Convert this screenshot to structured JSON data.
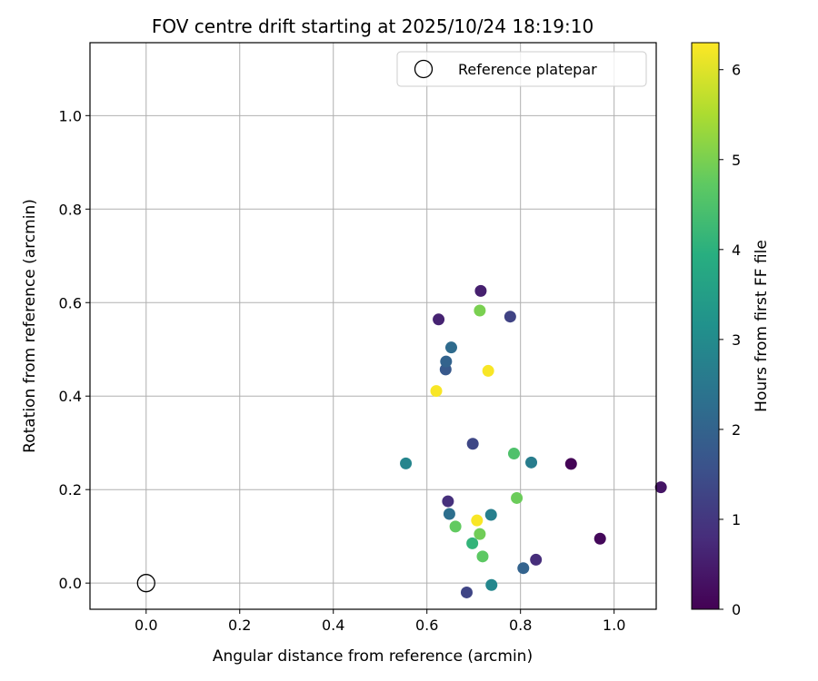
{
  "chart_data": {
    "type": "scatter",
    "title": "FOV centre drift starting at 2025/10/24 18:19:10",
    "xlabel": "Angular distance from reference (arcmin)",
    "ylabel": "Rotation from reference (arcmin)",
    "xlim": [
      -0.12,
      1.09
    ],
    "ylim": [
      -0.056,
      1.156
    ],
    "xticks": [
      0.0,
      0.2,
      0.4,
      0.6,
      0.8,
      1.0
    ],
    "xtick_labels": [
      "0.0",
      "0.2",
      "0.4",
      "0.6",
      "0.8",
      "1.0"
    ],
    "yticks": [
      0.0,
      0.2,
      0.4,
      0.6,
      0.8,
      1.0
    ],
    "ytick_labels": [
      "0.0",
      "0.2",
      "0.4",
      "0.6",
      "0.8",
      "1.0"
    ],
    "grid": true,
    "legend": {
      "placement": "upper right",
      "entries": [
        {
          "label": "Reference platepar",
          "marker": "open-circle",
          "x": 0.0,
          "y": 0.0
        }
      ]
    },
    "colorbar": {
      "label": "Hours from first FF file",
      "colormap": "viridis",
      "range": [
        0,
        6.3
      ],
      "ticks": [
        0,
        1,
        2,
        3,
        4,
        5,
        6
      ],
      "tick_labels": [
        "0",
        "1",
        "2",
        "3",
        "4",
        "5",
        "6"
      ]
    },
    "points": [
      {
        "x": 0.908,
        "y": 0.255,
        "hours": 0.05
      },
      {
        "x": 0.97,
        "y": 0.095,
        "hours": 0.12
      },
      {
        "x": 1.1,
        "y": 0.205,
        "hours": 0.35
      },
      {
        "x": 0.715,
        "y": 0.625,
        "hours": 0.55
      },
      {
        "x": 0.625,
        "y": 0.564,
        "hours": 0.6
      },
      {
        "x": 0.833,
        "y": 0.05,
        "hours": 0.8
      },
      {
        "x": 0.645,
        "y": 0.175,
        "hours": 0.85
      },
      {
        "x": 0.778,
        "y": 0.57,
        "hours": 1.25
      },
      {
        "x": 0.685,
        "y": -0.02,
        "hours": 1.3
      },
      {
        "x": 0.698,
        "y": 0.298,
        "hours": 1.35
      },
      {
        "x": 0.64,
        "y": 0.457,
        "hours": 1.75
      },
      {
        "x": 0.641,
        "y": 0.474,
        "hours": 2.0
      },
      {
        "x": 0.652,
        "y": 0.504,
        "hours": 2.2
      },
      {
        "x": 0.806,
        "y": 0.032,
        "hours": 2.0
      },
      {
        "x": 0.648,
        "y": 0.148,
        "hours": 2.3
      },
      {
        "x": 0.823,
        "y": 0.258,
        "hours": 2.65
      },
      {
        "x": 0.737,
        "y": 0.146,
        "hours": 2.7
      },
      {
        "x": 0.555,
        "y": 0.256,
        "hours": 2.85
      },
      {
        "x": 0.738,
        "y": -0.004,
        "hours": 2.9
      },
      {
        "x": 0.697,
        "y": 0.085,
        "hours": 4.1
      },
      {
        "x": 0.786,
        "y": 0.277,
        "hours": 4.5
      },
      {
        "x": 0.719,
        "y": 0.057,
        "hours": 4.7
      },
      {
        "x": 0.661,
        "y": 0.121,
        "hours": 4.75
      },
      {
        "x": 0.792,
        "y": 0.182,
        "hours": 4.85
      },
      {
        "x": 0.713,
        "y": 0.105,
        "hours": 4.9
      },
      {
        "x": 0.713,
        "y": 0.583,
        "hours": 5.0
      },
      {
        "x": 0.731,
        "y": 0.454,
        "hours": 6.25
      },
      {
        "x": 0.707,
        "y": 0.134,
        "hours": 6.25
      },
      {
        "x": 0.62,
        "y": 0.411,
        "hours": 6.25
      }
    ]
  }
}
